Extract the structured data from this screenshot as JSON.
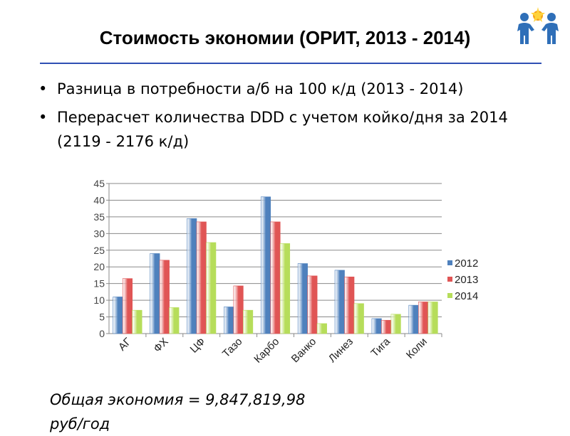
{
  "slide": {
    "title": "Стоимость экономии (ОРИТ, 2013 - 2014)",
    "bullets": [
      "Разница в потребности а/б на 100 к/д (2013 - 2014)",
      "Перерасчет количества DDD с учетом койко/дня за 2014 (2119 - 2176 к/д)"
    ],
    "footer": [
      "Общая экономия = 9,847,819,98",
      "руб/год"
    ],
    "logo_icon": "two-figures-star-logo-icon"
  },
  "colors": {
    "rule": "#2f4fb3",
    "s2012": "#4f81bd",
    "s2013": "#e05555",
    "s2014": "#b6dd5a"
  },
  "chart_data": {
    "type": "bar",
    "categories": [
      "АГ",
      "ФХ",
      "ЦФ",
      "Тазо",
      "Карбо",
      "Ванко",
      "Линез",
      "Тига",
      "Коли"
    ],
    "series": [
      {
        "name": "2012",
        "values": [
          11,
          24,
          34.5,
          8,
          41,
          21,
          19,
          4.5,
          8.5
        ]
      },
      {
        "name": "2013",
        "values": [
          16.5,
          22,
          33.5,
          14.3,
          33.5,
          17.3,
          17,
          4,
          9.5
        ]
      },
      {
        "name": "2014",
        "values": [
          7,
          7.8,
          27.3,
          7,
          27,
          3,
          9,
          5.8,
          9.5
        ]
      }
    ],
    "yticks": [
      0,
      5,
      10,
      15,
      20,
      25,
      30,
      35,
      40,
      45
    ],
    "ylim": [
      0,
      45
    ],
    "grid": true,
    "legend": "right"
  }
}
